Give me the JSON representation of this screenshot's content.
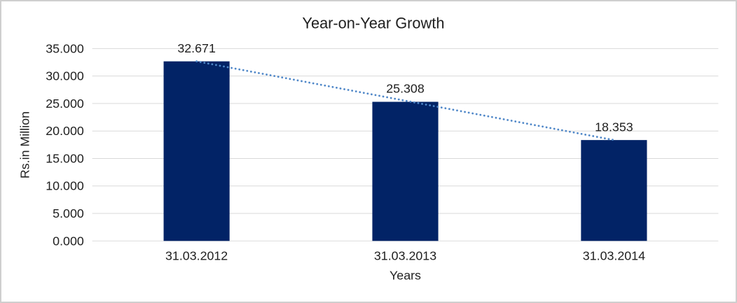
{
  "chart_data": {
    "type": "bar",
    "title": "Year-on-Year Growth",
    "xlabel": "Years",
    "ylabel": "Rs.in Million",
    "categories": [
      "31.03.2012",
      "31.03.2013",
      "31.03.2014"
    ],
    "values": [
      32671,
      25308,
      18353
    ],
    "value_labels": [
      "32.671",
      "25.308",
      "18.353"
    ],
    "ylim": [
      0,
      35000
    ],
    "ytick_values": [
      0,
      5000,
      10000,
      15000,
      20000,
      25000,
      30000,
      35000
    ],
    "ytick_labels": [
      "0.000",
      "5.000",
      "10.000",
      "15.000",
      "20.000",
      "25.000",
      "30.000",
      "35.000"
    ],
    "grid": true,
    "legend": false,
    "bar_color": "#022366",
    "gridline_color": "#d9d9d9",
    "trendline": {
      "type": "linear",
      "style": "dotted",
      "color": "#4f87c8"
    }
  }
}
